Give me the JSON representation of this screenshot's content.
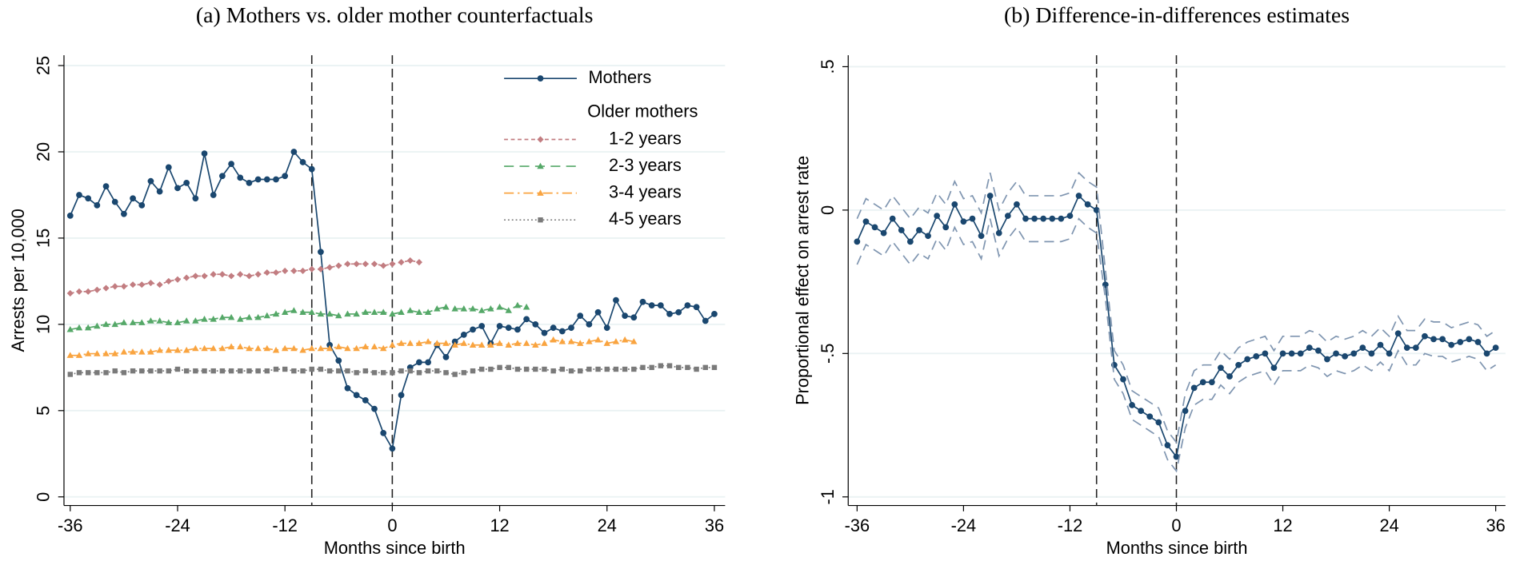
{
  "chart_data": [
    {
      "type": "line",
      "title": "(a) Mothers vs. older mother counterfactuals",
      "xlabel": "Months since birth",
      "ylabel": "Arrests per 10,000",
      "x": [
        -36,
        -35,
        -34,
        -33,
        -32,
        -31,
        -30,
        -29,
        -28,
        -27,
        -26,
        -25,
        -24,
        -23,
        -22,
        -21,
        -20,
        -19,
        -18,
        -17,
        -16,
        -15,
        -14,
        -13,
        -12,
        -11,
        -10,
        -9,
        -8,
        -7,
        -6,
        -5,
        -4,
        -3,
        -2,
        -1,
        0,
        1,
        2,
        3,
        4,
        5,
        6,
        7,
        8,
        9,
        10,
        11,
        12,
        13,
        14,
        15,
        16,
        17,
        18,
        19,
        20,
        21,
        22,
        23,
        24,
        25,
        26,
        27,
        28,
        29,
        30,
        31,
        32,
        33,
        34,
        35,
        36
      ],
      "xlim": [
        -36.7,
        37.2
      ],
      "xticks": [
        -36,
        -24,
        -12,
        0,
        12,
        24,
        36
      ],
      "ylim": [
        -0.5,
        25.6
      ],
      "yticks": [
        0,
        5,
        10,
        15,
        20,
        25
      ],
      "grid": true,
      "xlines": [
        -9,
        0
      ],
      "legend": "top-right",
      "legend_title": "Older mothers",
      "series": [
        {
          "name": "Mothers",
          "color": "#1a476f",
          "dash": "solid",
          "marker": "circle",
          "values": [
            16.3,
            17.5,
            17.3,
            16.9,
            18.0,
            17.1,
            16.4,
            17.3,
            16.9,
            18.3,
            17.7,
            19.1,
            17.9,
            18.2,
            17.3,
            19.9,
            17.5,
            18.6,
            19.3,
            18.5,
            18.2,
            18.4,
            18.4,
            18.4,
            18.6,
            20.0,
            19.4,
            19.0,
            14.2,
            8.8,
            7.9,
            6.3,
            5.9,
            5.6,
            5.1,
            3.7,
            2.8,
            5.9,
            7.5,
            7.8,
            7.8,
            8.8,
            8.1,
            9.0,
            9.4,
            9.7,
            9.9,
            8.9,
            9.9,
            9.8,
            9.7,
            10.3,
            10.0,
            9.5,
            9.8,
            9.6,
            9.8,
            10.5,
            10.0,
            10.7,
            9.8,
            11.4,
            10.5,
            10.4,
            11.3,
            11.1,
            11.1,
            10.6,
            10.7,
            11.1,
            11.0,
            10.2,
            10.6
          ]
        },
        {
          "name": "1-2 years",
          "color": "#c27d81",
          "dash": "shortdash",
          "marker": "diamond",
          "values": [
            11.8,
            11.9,
            11.9,
            12.0,
            12.1,
            12.2,
            12.2,
            12.3,
            12.3,
            12.4,
            12.3,
            12.5,
            12.6,
            12.7,
            12.8,
            12.8,
            12.9,
            12.9,
            12.8,
            12.9,
            12.8,
            12.9,
            13.0,
            13.0,
            13.1,
            13.1,
            13.1,
            13.2,
            13.2,
            13.3,
            13.4,
            13.5,
            13.5,
            13.5,
            13.5,
            13.4,
            13.5,
            13.6,
            13.7,
            13.6,
            null,
            null,
            null,
            null,
            null,
            null,
            null,
            null,
            null,
            null,
            null,
            null,
            null,
            null,
            null,
            null,
            null,
            null,
            null,
            null,
            null,
            null,
            null,
            null,
            null,
            null,
            null,
            null,
            null,
            null,
            null,
            null,
            null
          ]
        },
        {
          "name": "2-3 years",
          "color": "#55a868",
          "dash": "longdash",
          "marker": "triangle",
          "values": [
            9.7,
            9.8,
            9.8,
            9.9,
            10.0,
            10.0,
            10.1,
            10.1,
            10.1,
            10.2,
            10.2,
            10.1,
            10.1,
            10.2,
            10.2,
            10.3,
            10.3,
            10.4,
            10.4,
            10.3,
            10.4,
            10.4,
            10.5,
            10.6,
            10.7,
            10.8,
            10.7,
            10.7,
            10.6,
            10.6,
            10.5,
            10.6,
            10.6,
            10.7,
            10.7,
            10.7,
            10.6,
            10.7,
            10.8,
            10.7,
            10.7,
            10.9,
            11.0,
            10.9,
            10.9,
            10.9,
            10.8,
            10.9,
            11.0,
            10.8,
            11.1,
            11.0,
            null,
            null,
            null,
            null,
            null,
            null,
            null,
            null,
            null,
            null,
            null,
            null,
            null,
            null,
            null,
            null,
            null,
            null,
            null,
            null,
            null
          ]
        },
        {
          "name": "3-4 years",
          "color": "#f9a440",
          "dash": "dashdot",
          "marker": "triangle",
          "values": [
            8.2,
            8.2,
            8.3,
            8.3,
            8.3,
            8.3,
            8.4,
            8.4,
            8.4,
            8.4,
            8.5,
            8.5,
            8.5,
            8.5,
            8.6,
            8.6,
            8.6,
            8.6,
            8.7,
            8.7,
            8.6,
            8.6,
            8.6,
            8.5,
            8.6,
            8.6,
            8.5,
            8.6,
            8.6,
            8.6,
            8.7,
            8.6,
            8.6,
            8.7,
            8.7,
            8.6,
            8.8,
            8.9,
            8.9,
            8.9,
            9.0,
            8.9,
            8.9,
            8.8,
            8.9,
            8.8,
            8.8,
            8.8,
            8.9,
            8.8,
            8.9,
            8.9,
            8.8,
            8.9,
            9.1,
            9.0,
            9.0,
            8.9,
            9.0,
            9.1,
            8.9,
            9.0,
            9.1,
            9.0,
            null,
            null,
            null,
            null,
            null,
            null,
            null,
            null,
            null
          ]
        },
        {
          "name": "4-5 years",
          "color": "#7a7a7a",
          "dash": "dot",
          "marker": "square",
          "values": [
            7.1,
            7.2,
            7.2,
            7.2,
            7.2,
            7.3,
            7.2,
            7.3,
            7.3,
            7.3,
            7.3,
            7.3,
            7.4,
            7.3,
            7.3,
            7.3,
            7.3,
            7.3,
            7.3,
            7.3,
            7.3,
            7.3,
            7.3,
            7.4,
            7.4,
            7.3,
            7.3,
            7.4,
            7.4,
            7.3,
            7.3,
            7.3,
            7.2,
            7.3,
            7.2,
            7.2,
            7.2,
            7.3,
            7.3,
            7.2,
            7.3,
            7.3,
            7.2,
            7.1,
            7.2,
            7.3,
            7.4,
            7.4,
            7.5,
            7.5,
            7.4,
            7.4,
            7.4,
            7.4,
            7.3,
            7.4,
            7.3,
            7.3,
            7.4,
            7.4,
            7.4,
            7.4,
            7.4,
            7.4,
            7.5,
            7.5,
            7.6,
            7.6,
            7.5,
            7.5,
            7.4,
            7.5,
            7.5
          ]
        }
      ]
    },
    {
      "type": "line",
      "title": "(b) Difference-in-differences estimates",
      "xlabel": "Months since birth",
      "ylabel": "Proportional effect on arrest rate",
      "x": [
        -36,
        -35,
        -34,
        -33,
        -32,
        -31,
        -30,
        -29,
        -28,
        -27,
        -26,
        -25,
        -24,
        -23,
        -22,
        -21,
        -20,
        -19,
        -18,
        -17,
        -16,
        -15,
        -14,
        -13,
        -12,
        -11,
        -10,
        -9,
        -8,
        -7,
        -6,
        -5,
        -4,
        -3,
        -2,
        -1,
        0,
        1,
        2,
        3,
        4,
        5,
        6,
        7,
        8,
        9,
        10,
        11,
        12,
        13,
        14,
        15,
        16,
        17,
        18,
        19,
        20,
        21,
        22,
        23,
        24,
        25,
        26,
        27,
        28,
        29,
        30,
        31,
        32,
        33,
        34,
        35,
        36
      ],
      "xlim": [
        -37,
        37.1
      ],
      "xticks": [
        -36,
        -24,
        -12,
        0,
        12,
        24,
        36
      ],
      "ylim": [
        -1.03,
        0.54
      ],
      "yticks": [
        {
          "value": 0.5,
          "label": ".5"
        },
        0,
        {
          "value": -0.5,
          "label": "-.5"
        },
        -1
      ],
      "grid": true,
      "xlines": [
        -9,
        0
      ],
      "series": [
        {
          "color": "#1a476f",
          "dash": "solid",
          "marker": "circle",
          "values": [
            -0.11,
            -0.04,
            -0.06,
            -0.08,
            -0.03,
            -0.07,
            -0.11,
            -0.07,
            -0.09,
            -0.02,
            -0.06,
            0.02,
            -0.04,
            -0.03,
            -0.09,
            0.05,
            -0.08,
            -0.02,
            0.02,
            -0.03,
            -0.03,
            -0.03,
            -0.03,
            -0.03,
            -0.02,
            0.05,
            0.02,
            0.0,
            -0.26,
            -0.54,
            -0.59,
            -0.68,
            -0.7,
            -0.72,
            -0.74,
            -0.82,
            -0.86,
            -0.7,
            -0.62,
            -0.6,
            -0.6,
            -0.55,
            -0.58,
            -0.54,
            -0.52,
            -0.51,
            -0.5,
            -0.55,
            -0.5,
            -0.5,
            -0.5,
            -0.48,
            -0.49,
            -0.52,
            -0.5,
            -0.51,
            -0.5,
            -0.48,
            -0.5,
            -0.47,
            -0.5,
            -0.43,
            -0.48,
            -0.48,
            -0.44,
            -0.45,
            -0.45,
            -0.47,
            -0.46,
            -0.45,
            -0.46,
            -0.5,
            -0.48
          ]
        },
        {
          "color": "#7f95b0",
          "dash": "longdash",
          "values": [
            -0.03,
            0.04,
            0.02,
            0.0,
            0.05,
            0.01,
            -0.03,
            0.01,
            -0.01,
            0.06,
            0.02,
            0.1,
            0.04,
            0.05,
            -0.01,
            0.13,
            0.0,
            0.06,
            0.1,
            0.05,
            0.05,
            0.05,
            0.05,
            0.05,
            0.06,
            0.13,
            0.1,
            0.08,
            -0.21,
            -0.49,
            -0.54,
            -0.63,
            -0.65,
            -0.67,
            -0.69,
            -0.77,
            -0.81,
            -0.64,
            -0.56,
            -0.54,
            -0.54,
            -0.49,
            -0.52,
            -0.48,
            -0.46,
            -0.45,
            -0.44,
            -0.49,
            -0.44,
            -0.44,
            -0.44,
            -0.42,
            -0.43,
            -0.46,
            -0.44,
            -0.45,
            -0.44,
            -0.42,
            -0.44,
            -0.41,
            -0.44,
            -0.37,
            -0.42,
            -0.42,
            -0.38,
            -0.39,
            -0.39,
            -0.41,
            -0.4,
            -0.39,
            -0.4,
            -0.44,
            -0.42
          ]
        },
        {
          "color": "#7f95b0",
          "dash": "longdash",
          "values": [
            -0.19,
            -0.12,
            -0.14,
            -0.16,
            -0.11,
            -0.15,
            -0.19,
            -0.15,
            -0.17,
            -0.1,
            -0.14,
            -0.06,
            -0.12,
            -0.11,
            -0.17,
            -0.03,
            -0.16,
            -0.1,
            -0.06,
            -0.11,
            -0.11,
            -0.11,
            -0.11,
            -0.11,
            -0.1,
            -0.03,
            -0.06,
            -0.08,
            -0.31,
            -0.59,
            -0.64,
            -0.73,
            -0.75,
            -0.77,
            -0.79,
            -0.87,
            -0.91,
            -0.76,
            -0.68,
            -0.66,
            -0.66,
            -0.61,
            -0.64,
            -0.6,
            -0.58,
            -0.57,
            -0.56,
            -0.61,
            -0.56,
            -0.56,
            -0.56,
            -0.54,
            -0.55,
            -0.58,
            -0.56,
            -0.57,
            -0.56,
            -0.54,
            -0.56,
            -0.53,
            -0.56,
            -0.49,
            -0.54,
            -0.54,
            -0.5,
            -0.51,
            -0.51,
            -0.53,
            -0.52,
            -0.51,
            -0.52,
            -0.56,
            -0.54
          ]
        }
      ]
    }
  ]
}
